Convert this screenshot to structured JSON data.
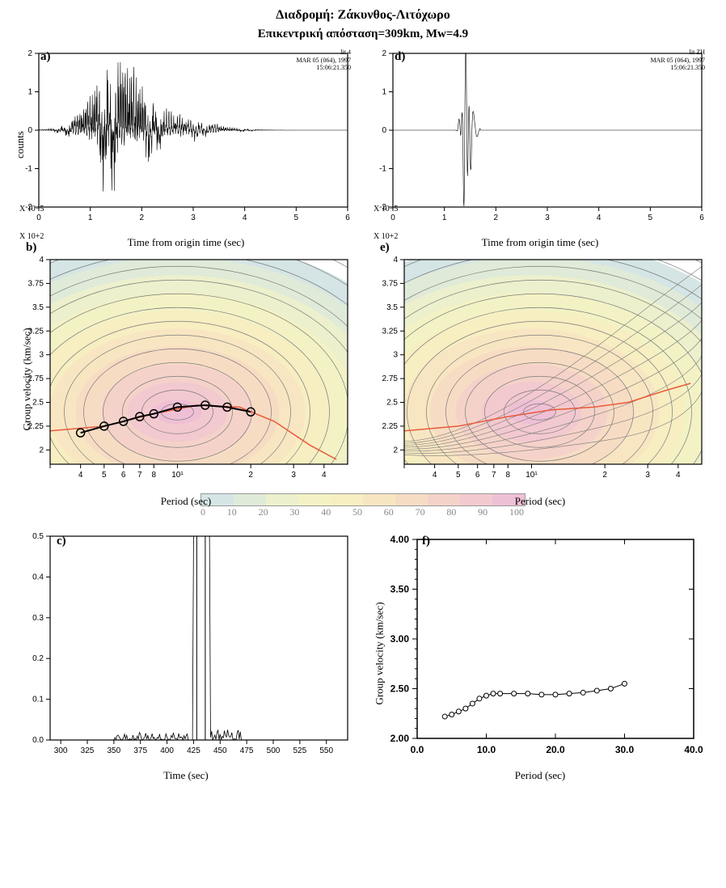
{
  "title1": "Διαδρομή: Ζάκυνθος-Λιτόχωρο",
  "title2": "Επικεντρική απόσταση=309km, Mw=4.9",
  "panels": {
    "a": {
      "label": "a)",
      "ylabel": "counts",
      "xlabel": "Time from origin time (sec)",
      "corner": "lit         4\nMAR 05 (064), 1997\n15:06:21.350",
      "xscale": "X 10+2",
      "yscale": "X 10−5",
      "xlim": [
        0,
        6
      ],
      "ylim": [
        -2,
        2
      ],
      "xticks": [
        0,
        1,
        2,
        3,
        4,
        5,
        6
      ],
      "yticks": [
        -2,
        -1,
        0,
        1,
        2
      ]
    },
    "d": {
      "label": "d)",
      "xlabel": "Time from origin time (sec)",
      "corner": "lit       ZH\nMAR 05 (064), 1997\n15:06:21.350",
      "xscale": "X 10+2",
      "yscale": "X 10−5",
      "xlim": [
        0,
        6
      ],
      "ylim": [
        -2,
        2
      ],
      "xticks": [
        0,
        1,
        2,
        3,
        4,
        5,
        6
      ],
      "yticks": [
        -2,
        -1,
        0,
        1,
        2
      ]
    },
    "b": {
      "label": "b)",
      "ylabel": "Group velocity (km/sec)",
      "xlabel": "Period (sec)",
      "xlim": [
        3,
        50
      ],
      "ylim": [
        1.85,
        4
      ],
      "yticks": [
        2,
        2.25,
        2.5,
        2.75,
        3,
        3.25,
        3.5,
        3.75,
        4
      ],
      "xticks": [
        3,
        4,
        5,
        6,
        7,
        8,
        10,
        20,
        30,
        40
      ],
      "xticklabels": [
        "",
        "4",
        "5",
        "6",
        "7",
        "8",
        "10¹",
        "2",
        "3",
        "4"
      ],
      "markers": [
        [
          4,
          2.18
        ],
        [
          5,
          2.25
        ],
        [
          6,
          2.3
        ],
        [
          7,
          2.35
        ],
        [
          8,
          2.38
        ],
        [
          10,
          2.45
        ],
        [
          13,
          2.47
        ],
        [
          16,
          2.45
        ],
        [
          20,
          2.4
        ]
      ]
    },
    "e": {
      "label": "e)",
      "xlabel": "Period (sec)",
      "xlim": [
        3,
        50
      ],
      "ylim": [
        1.85,
        4
      ],
      "yticks": [
        2,
        2.25,
        2.5,
        2.75,
        3,
        3.25,
        3.5,
        3.75,
        4
      ],
      "xticks": [
        3,
        4,
        5,
        6,
        7,
        8,
        10,
        20,
        30,
        40
      ],
      "xticklabels": [
        "",
        "4",
        "5",
        "6",
        "7",
        "8",
        "10¹",
        "2",
        "3",
        "4"
      ]
    },
    "c": {
      "label": "c)",
      "xlabel": "Time (sec)",
      "xlim": [
        290,
        570
      ],
      "ylim": [
        0,
        0.5
      ],
      "yticks": [
        0,
        0.1,
        0.2,
        0.3,
        0.4,
        0.5
      ],
      "xticks": [
        300,
        325,
        350,
        375,
        400,
        425,
        450,
        475,
        500,
        525,
        550
      ]
    },
    "f": {
      "label": "f)",
      "ylabel": "Group velocity (km/sec)",
      "xlabel": "Period (sec)",
      "xlim": [
        0,
        40
      ],
      "ylim": [
        2,
        4
      ],
      "yticks": [
        2.0,
        2.5,
        3.0,
        3.5,
        4.0
      ],
      "xticks": [
        0,
        10,
        20,
        30,
        40
      ],
      "xticklabels": [
        "0.0",
        "10.0",
        "20.0",
        "30.0",
        "40.0"
      ],
      "yticklabels": [
        "2.00",
        "2.50",
        "3.00",
        "3.50",
        "4.00"
      ],
      "data": [
        [
          4,
          2.22
        ],
        [
          5,
          2.24
        ],
        [
          6,
          2.27
        ],
        [
          7,
          2.3
        ],
        [
          8,
          2.35
        ],
        [
          9,
          2.4
        ],
        [
          10,
          2.43
        ],
        [
          11,
          2.45
        ],
        [
          12,
          2.45
        ],
        [
          14,
          2.45
        ],
        [
          16,
          2.45
        ],
        [
          18,
          2.44
        ],
        [
          20,
          2.44
        ],
        [
          22,
          2.45
        ],
        [
          24,
          2.46
        ],
        [
          26,
          2.48
        ],
        [
          28,
          2.5
        ],
        [
          30,
          2.55
        ]
      ]
    }
  },
  "colorbar": {
    "values": [
      0,
      10,
      20,
      30,
      40,
      50,
      60,
      70,
      80,
      90,
      100
    ],
    "colors": [
      "#d5e5e5",
      "#e0ead8",
      "#ecf0cc",
      "#f3f2c5",
      "#f7eec2",
      "#f8e6c2",
      "#f7dcc4",
      "#f5d2c9",
      "#f2c9cf",
      "#efc0d5"
    ]
  },
  "waveform_a": "compressed seismogram data — dense oscillation ~x=1 to 2.5, peak burst at ~1.4",
  "waveform_d": "filtered seismogram — sharp pulse group at ~1.4, quiet elsewhere",
  "colors": {
    "contour": "#7a7a7a",
    "disp_line": "#e85a3a",
    "marker_stroke": "#000",
    "bg": "#fff",
    "axis": "#000"
  }
}
